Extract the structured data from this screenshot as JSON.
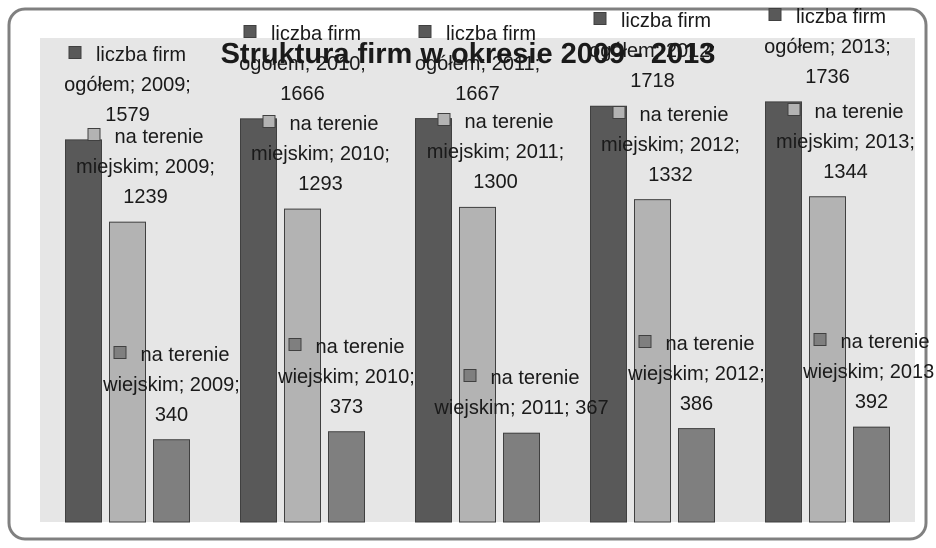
{
  "chart_data": {
    "type": "bar",
    "title": "Struktura firm w okresie 2009 - 2013",
    "categories": [
      "2009",
      "2010",
      "2011",
      "2012",
      "2013"
    ],
    "series": [
      {
        "name": "liczba firm ogółem",
        "color": "#595959",
        "values": [
          1579,
          1666,
          1667,
          1718,
          1736
        ],
        "value_labels": [
          "liczba firm ogółem; 2009; 1579",
          "liczba firm ogółem; 2010; 1666",
          "liczba firm ogółem; 2011; 1667",
          "liczba firm ogółem; 2012; 1718",
          "liczba firm ogółem; 2013; 1736"
        ]
      },
      {
        "name": "liczba firm na terenie miejskim",
        "color": "#b3b3b3",
        "values": [
          1239,
          1293,
          1300,
          1332,
          1344
        ],
        "value_labels": [
          "na terenie miejskim; 2009; 1239",
          "na terenie miejskim; 2010; 1293",
          "na terenie miejskim; 2011; 1300",
          "na terenie miejskim; 2012; 1332",
          "na terenie miejskim; 2013; 1344"
        ]
      },
      {
        "name": "liczba firm na terenie wiejskim",
        "color": "#7f7f7f",
        "values": [
          340,
          373,
          367,
          386,
          392
        ],
        "value_labels": [
          "na terenie wiejskim; 2009; 340",
          "na terenie wiejskim; 2010; 373",
          "na terenie wiejskim; 2011; 367",
          "na terenie wiejskim; 2012; 386",
          "na terenie wiejskim; 2013; 392"
        ]
      }
    ],
    "ylim": [
      0,
      2000
    ]
  }
}
